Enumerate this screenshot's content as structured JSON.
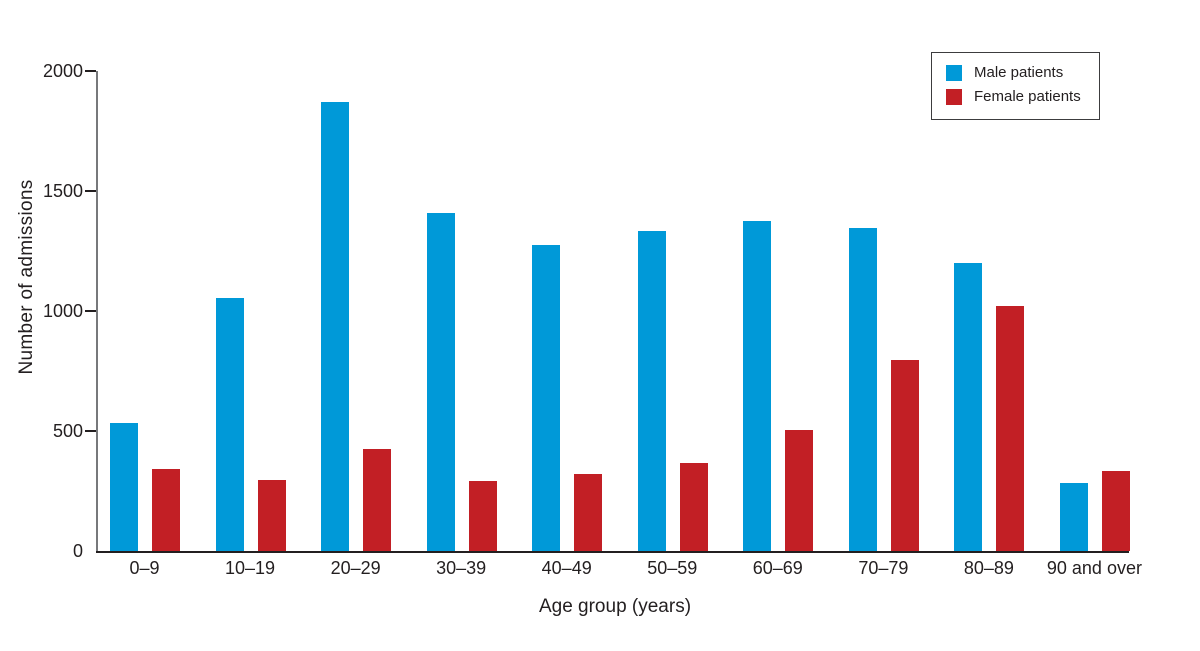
{
  "chart_data": {
    "type": "bar",
    "title": "",
    "xlabel": "Age group (years)",
    "ylabel": "Number of admissions",
    "categories": [
      "0–9",
      "10–19",
      "20–29",
      "30–39",
      "40–49",
      "50–59",
      "60–69",
      "70–79",
      "80–89",
      "90 and over"
    ],
    "series": [
      {
        "name": "Male patients",
        "color": "#0099d8",
        "values": [
          535,
          1055,
          1870,
          1410,
          1275,
          1335,
          1375,
          1345,
          1200,
          285
        ]
      },
      {
        "name": "Female patients",
        "color": "#c21f25",
        "values": [
          340,
          295,
          425,
          290,
          320,
          365,
          505,
          795,
          1020,
          335
        ]
      }
    ],
    "y_ticks": [
      0,
      500,
      1000,
      1500,
      2000
    ],
    "ylim": [
      0,
      2000
    ],
    "grid": false,
    "legend_position": "top-right"
  },
  "colors": {
    "male_bar": "#0099d8",
    "female_bar": "#c21f25",
    "y_axis_line": "#77787b",
    "x_axis_line": "#231f20",
    "text": "#231f20",
    "background": "#ffffff",
    "legend_border": "#3c3c3e"
  }
}
